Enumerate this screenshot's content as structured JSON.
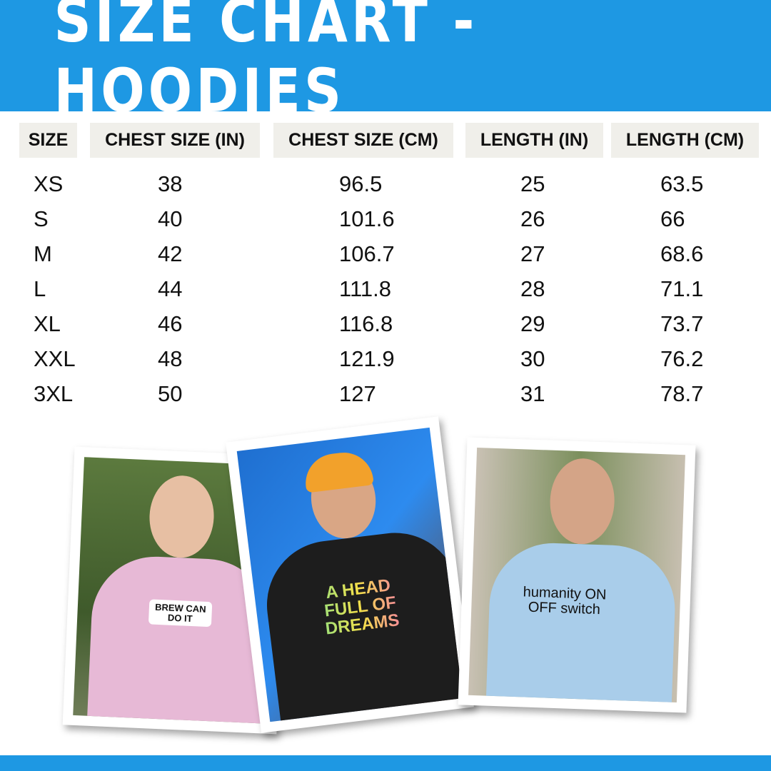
{
  "title": "SIZE CHART - HOODIES",
  "colors": {
    "brand_blue": "#1e98e3",
    "header_cell_bg": "#f0efea"
  },
  "table": {
    "headers": [
      "SIZE",
      "CHEST SIZE (IN)",
      "CHEST SIZE (CM)",
      "LENGTH (IN)",
      "LENGTH (CM)"
    ],
    "rows": [
      [
        "XS",
        "38",
        "96.5",
        "25",
        "63.5"
      ],
      [
        "S",
        "40",
        "101.6",
        "26",
        "66"
      ],
      [
        "M",
        "42",
        "106.7",
        "27",
        "68.6"
      ],
      [
        "L",
        "44",
        "111.8",
        "28",
        "71.1"
      ],
      [
        "XL",
        "46",
        "116.8",
        "29",
        "73.7"
      ],
      [
        "XXL",
        "48",
        "121.9",
        "30",
        "76.2"
      ],
      [
        "3XL",
        "50",
        "127",
        "31",
        "78.7"
      ]
    ]
  },
  "photos": [
    {
      "hoodie_color": "#e7b9d6",
      "print": "BREW CAN DO IT"
    },
    {
      "hoodie_color": "#1d1d1d",
      "print": "A HEAD FULL OF DREAMS"
    },
    {
      "hoodie_color": "#a9cdea",
      "print": "humanity ON OFF switch"
    }
  ]
}
